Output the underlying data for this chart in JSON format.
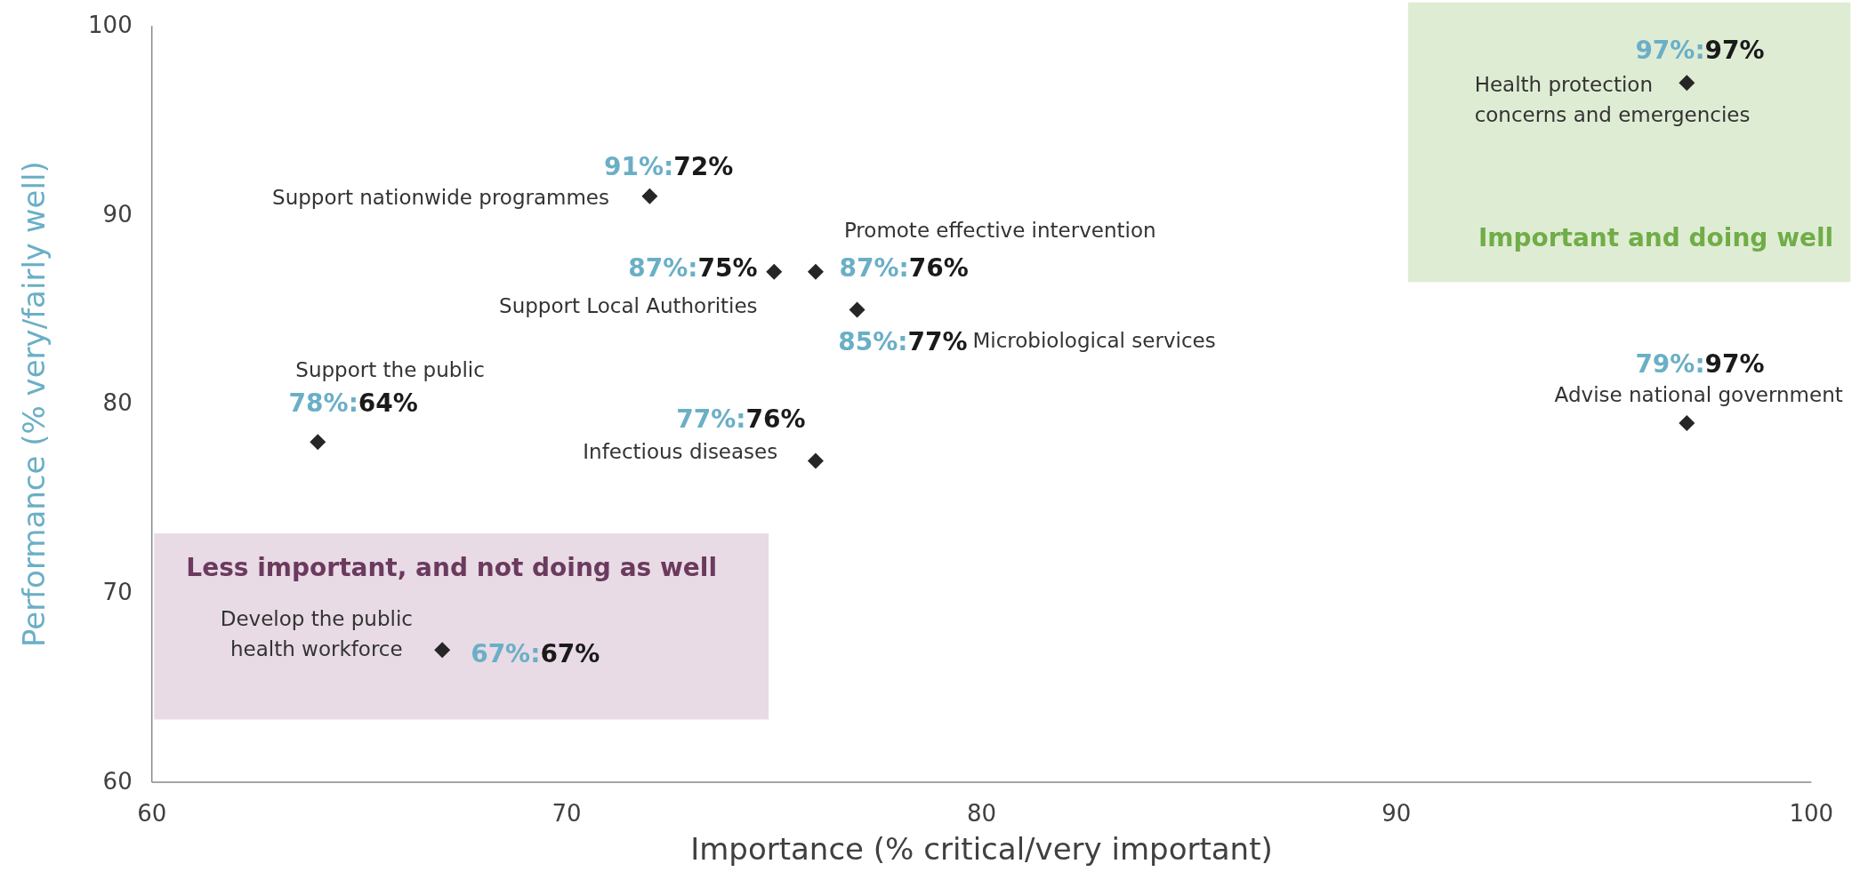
{
  "chart_data": {
    "type": "scatter",
    "xlabel": "Importance (% critical/very important)",
    "ylabel": "Performance (% very/fairly well)",
    "x": [
      72,
      75,
      76,
      77,
      64,
      76,
      67,
      97,
      97
    ],
    "series": [
      {
        "color": "#262626",
        "values": [
          91,
          87,
          87,
          85,
          78,
          77,
          67,
          97,
          79
        ],
        "value_labels": [
          "91%:72%",
          "87%:75%",
          "87%:76%",
          "85%:77%",
          "78%:64%",
          "77%:76%",
          "67%:67%",
          "97%:97%",
          "79%:97%"
        ]
      }
    ],
    "marker": "diamond",
    "xlim": [
      60,
      100
    ],
    "ylim": [
      60,
      100
    ],
    "xticks": [
      60,
      70,
      80,
      90,
      100
    ],
    "yticks": [
      60,
      70,
      80,
      90,
      100
    ],
    "annotations": [
      {
        "text": "Support nationwide programmes",
        "x": 72,
        "y": 91
      },
      {
        "text": "Support Local Authorities",
        "x": 75,
        "y": 87
      },
      {
        "text": "Promote effective intervention",
        "x": 76,
        "y": 87
      },
      "Microbiological services",
      {
        "text": "Support the public",
        "x": 64,
        "y": 78
      },
      {
        "text": "Infectious diseases",
        "x": 76,
        "y": 77
      },
      {
        "text": "Develop the public health workforce",
        "x": 67,
        "y": 67
      },
      {
        "text": "Health protection concerns and emergencies",
        "x": 97,
        "y": 97
      },
      {
        "text": "Advise national government",
        "x": 97,
        "y": 79
      },
      "Important and doing well",
      "Less important, and not doing as well"
    ]
  }
}
